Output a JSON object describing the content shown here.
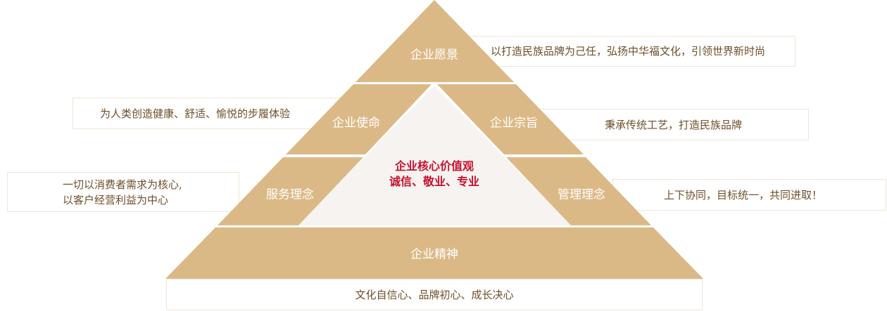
{
  "colors": {
    "band": "#dbb987",
    "core_bg": "#f6f3f0",
    "core_text": "#c8102e",
    "desc_text": "#6e4f2a"
  },
  "layers": [
    {
      "label": "企业愿景",
      "desc": "以打造民族品牌为己任，弘扬中华福文化，引领世界新时尚"
    },
    {
      "label": "企业使命",
      "desc": "为人类创造健康、舒适、愉悦的步履体验"
    },
    {
      "label": "企业宗旨",
      "desc": "秉承传统工艺，打造民族品牌"
    },
    {
      "label": "服务理念",
      "desc_line1": "一切以消费者需求为核心,",
      "desc_line2": "以客户经营利益为中心"
    },
    {
      "label": "管理理念",
      "desc": "上下协同，目标统一，共同进取！"
    },
    {
      "label": "企业精神",
      "desc": "文化自信心、品牌初心、成长决心"
    }
  ],
  "core": {
    "title": "企业核心价值观",
    "values": "诚信、敬业、专业"
  }
}
